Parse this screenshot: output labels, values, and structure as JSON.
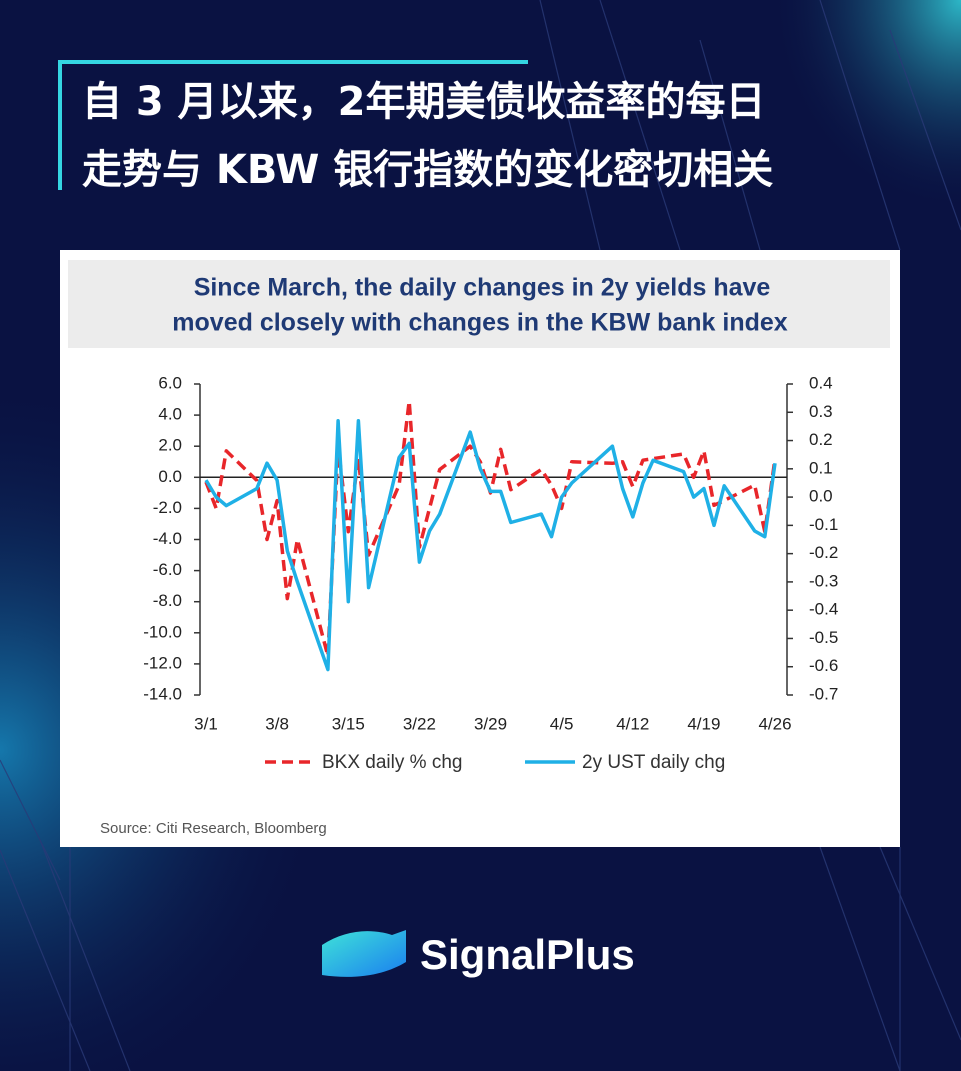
{
  "title": [
    "自 3 月以来，2年期美债收益率的每日",
    "走势与 KBW 银行指数的变化密切相关"
  ],
  "brand": "SignalPlus",
  "chart_data": {
    "type": "line",
    "title": [
      "Since March, the daily changes in 2y yields have",
      "moved closely with changes in the KBW bank index"
    ],
    "source": "Source: Citi Research, Bloomberg",
    "x": [
      "3/1",
      "3/2",
      "3/3",
      "3/6",
      "3/7",
      "3/8",
      "3/9",
      "3/10",
      "3/13",
      "3/14",
      "3/15",
      "3/16",
      "3/17",
      "3/20",
      "3/21",
      "3/22",
      "3/23",
      "3/24",
      "3/27",
      "3/28",
      "3/29",
      "3/30",
      "3/31",
      "4/3",
      "4/4",
      "4/5",
      "4/6",
      "4/10",
      "4/11",
      "4/12",
      "4/13",
      "4/14",
      "4/17",
      "4/18",
      "4/19",
      "4/20",
      "4/21",
      "4/24",
      "4/25",
      "4/26"
    ],
    "xticks": [
      "3/1",
      "3/8",
      "3/15",
      "3/22",
      "3/29",
      "4/5",
      "4/12",
      "4/19",
      "4/26"
    ],
    "series": [
      {
        "name": "BKX daily % chg",
        "color": "#e8262a",
        "dash": true,
        "values": [
          -0.3,
          -2.0,
          1.7,
          -0.2,
          -4.0,
          -1.5,
          -7.8,
          -4.0,
          -11.5,
          2.0,
          -3.5,
          1.2,
          -5.0,
          -0.5,
          4.9,
          -4.5,
          -2.0,
          0.5,
          2.0,
          1.0,
          -1.0,
          1.8,
          -0.8,
          0.5,
          -0.5,
          -2.0,
          1.0,
          0.9,
          1.0,
          -0.6,
          1.1,
          1.2,
          1.5,
          0.0,
          1.7,
          -1.8,
          -1.5,
          -0.5,
          -3.5,
          1.2
        ]
      },
      {
        "name": "2y UST daily chg",
        "color": "#1fb0e6",
        "axis": "y2",
        "values": [
          0.06,
          0.0,
          -0.03,
          0.03,
          0.12,
          0.06,
          -0.19,
          -0.3,
          -0.61,
          0.27,
          -0.37,
          0.27,
          -0.32,
          0.14,
          0.19,
          -0.23,
          -0.12,
          -0.06,
          0.23,
          0.1,
          0.02,
          0.02,
          -0.09,
          -0.06,
          -0.14,
          0.0,
          0.05,
          0.18,
          0.03,
          -0.07,
          0.05,
          0.13,
          0.09,
          0.0,
          0.03,
          -0.1,
          0.04,
          -0.12,
          -0.14,
          0.12
        ]
      }
    ],
    "ylim": [
      -14,
      6
    ],
    "yticks": [
      {
        "value": 6,
        "label": "6.0"
      },
      {
        "value": 4,
        "label": "4.0"
      },
      {
        "value": 2,
        "label": "2.0"
      },
      {
        "value": 0,
        "label": "0.0"
      },
      {
        "value": -2,
        "label": "-2.0"
      },
      {
        "value": -4,
        "label": "-4.0"
      },
      {
        "value": -6,
        "label": "-6.0"
      },
      {
        "value": -8,
        "label": "-8.0"
      },
      {
        "value": -10,
        "label": "-10.0"
      },
      {
        "value": -12,
        "label": "-12.0"
      },
      {
        "value": -14,
        "label": "-14.0"
      }
    ],
    "y2lim": [
      -0.7,
      0.4
    ],
    "y2ticks": [
      0.4,
      0.3,
      0.2,
      0.1,
      {
        "value": 0,
        "label": "0.0"
      },
      -0.1,
      -0.2,
      -0.3,
      -0.4,
      -0.5,
      -0.6,
      -0.7
    ],
    "legend": "bottom"
  }
}
